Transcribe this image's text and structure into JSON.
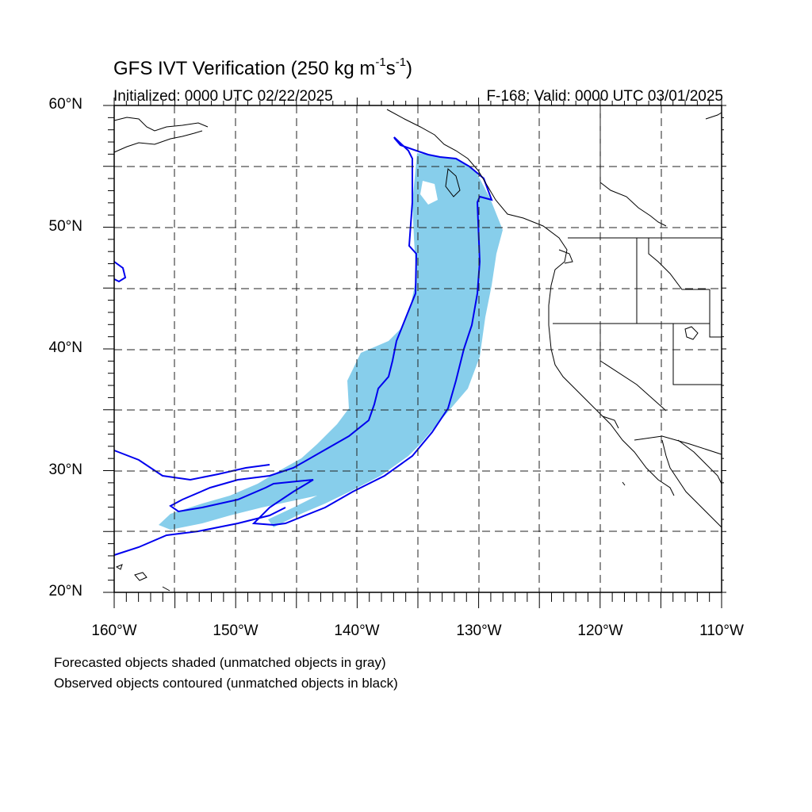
{
  "title": {
    "main": "GFS IVT Verification (250 kg m",
    "exp1": "-1",
    "mid": "s",
    "exp2": "-1",
    "end": ")"
  },
  "initialized": "Initialized: 0000 UTC 02/22/2025",
  "valid": "F-168: Valid: 0000 UTC 03/01/2025",
  "lat_labels": [
    "60°N",
    "50°N",
    "40°N",
    "30°N",
    "20°N"
  ],
  "lon_labels": [
    "160°W",
    "150°W",
    "140°W",
    "130°W",
    "120°W",
    "110°W"
  ],
  "notes": [
    "Forecasted objects shaded (unmatched objects in gray)",
    "Observed objects contoured (unmatched objects in black)"
  ],
  "map": {
    "lon_range": [
      -160,
      -110
    ],
    "lat_range": [
      20,
      60
    ],
    "forecast_color": "#87ceeb",
    "observed_color": "#0000ee",
    "coast_color": "#000000",
    "grid": true
  }
}
